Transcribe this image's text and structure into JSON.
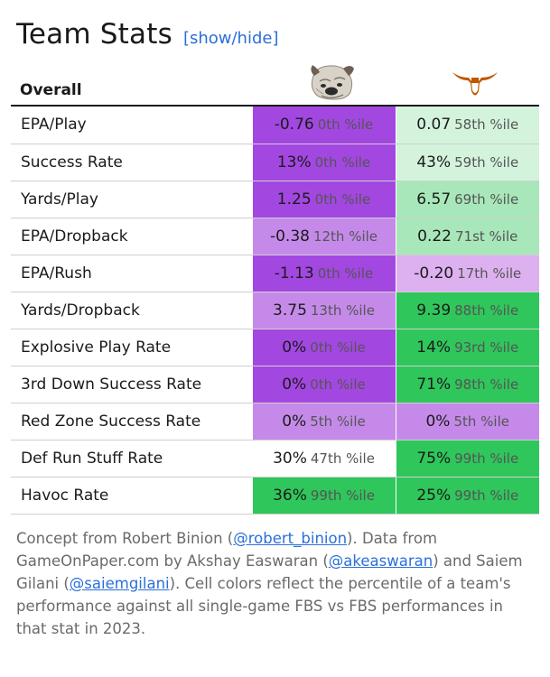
{
  "title": "Team Stats",
  "toggle_label": "[show/hide]",
  "section_label": "Overall",
  "team_logos": [
    {
      "icon": "bulldog-icon"
    },
    {
      "icon": "longhorn-icon",
      "color": "#bf5700"
    }
  ],
  "colors": {
    "purple_dark": "#a347e1",
    "purple_mid": "#c58ae9",
    "purple_light": "#ddb1f0",
    "green_pale": "#d3f3dd",
    "green_light": "#a8e7b9",
    "green_dark": "#2fc65b",
    "neutral": "#ffffff",
    "link": "#2a6fdb"
  },
  "rows": [
    {
      "stat": "EPA/Play",
      "a": {
        "value": "-0.76",
        "pct": "0th %ile",
        "tone": "purple_dark"
      },
      "b": {
        "value": "0.07",
        "pct": "58th %ile",
        "tone": "green_pale"
      }
    },
    {
      "stat": "Success Rate",
      "a": {
        "value": "13%",
        "pct": "0th %ile",
        "tone": "purple_dark"
      },
      "b": {
        "value": "43%",
        "pct": "59th %ile",
        "tone": "green_pale"
      }
    },
    {
      "stat": "Yards/Play",
      "a": {
        "value": "1.25",
        "pct": "0th %ile",
        "tone": "purple_dark"
      },
      "b": {
        "value": "6.57",
        "pct": "69th %ile",
        "tone": "green_light"
      }
    },
    {
      "stat": "EPA/Dropback",
      "a": {
        "value": "-0.38",
        "pct": "12th %ile",
        "tone": "purple_mid"
      },
      "b": {
        "value": "0.22",
        "pct": "71st %ile",
        "tone": "green_light"
      }
    },
    {
      "stat": "EPA/Rush",
      "a": {
        "value": "-1.13",
        "pct": "0th %ile",
        "tone": "purple_dark"
      },
      "b": {
        "value": "-0.20",
        "pct": "17th %ile",
        "tone": "purple_light"
      }
    },
    {
      "stat": "Yards/Dropback",
      "a": {
        "value": "3.75",
        "pct": "13th %ile",
        "tone": "purple_mid"
      },
      "b": {
        "value": "9.39",
        "pct": "88th %ile",
        "tone": "green_dark"
      }
    },
    {
      "stat": "Explosive Play Rate",
      "a": {
        "value": "0%",
        "pct": "0th %ile",
        "tone": "purple_dark"
      },
      "b": {
        "value": "14%",
        "pct": "93rd %ile",
        "tone": "green_dark"
      }
    },
    {
      "stat": "3rd Down Success Rate",
      "a": {
        "value": "0%",
        "pct": "0th %ile",
        "tone": "purple_dark"
      },
      "b": {
        "value": "71%",
        "pct": "98th %ile",
        "tone": "green_dark"
      }
    },
    {
      "stat": "Red Zone Success Rate",
      "a": {
        "value": "0%",
        "pct": "5th %ile",
        "tone": "purple_mid"
      },
      "b": {
        "value": "0%",
        "pct": "5th %ile",
        "tone": "purple_mid"
      }
    },
    {
      "stat": "Def Run Stuff Rate",
      "a": {
        "value": "30%",
        "pct": "47th %ile",
        "tone": "neutral"
      },
      "b": {
        "value": "75%",
        "pct": "99th %ile",
        "tone": "green_dark"
      }
    },
    {
      "stat": "Havoc Rate",
      "a": {
        "value": "36%",
        "pct": "99th %ile",
        "tone": "green_dark"
      },
      "b": {
        "value": "25%",
        "pct": "99th %ile",
        "tone": "green_dark"
      }
    }
  ],
  "footer": {
    "p1": "Concept from Robert Binion (",
    "link1": "@robert_binion",
    "p2": "). Data from GameOnPaper.com by Akshay Easwaran (",
    "link2": "@akeaswaran",
    "p3": ") and Saiem Gilani (",
    "link3": "@saiemgilani",
    "p4": "). Cell colors reflect the percentile of a team's performance against all single-game FBS vs FBS performances in that stat in 2023."
  }
}
